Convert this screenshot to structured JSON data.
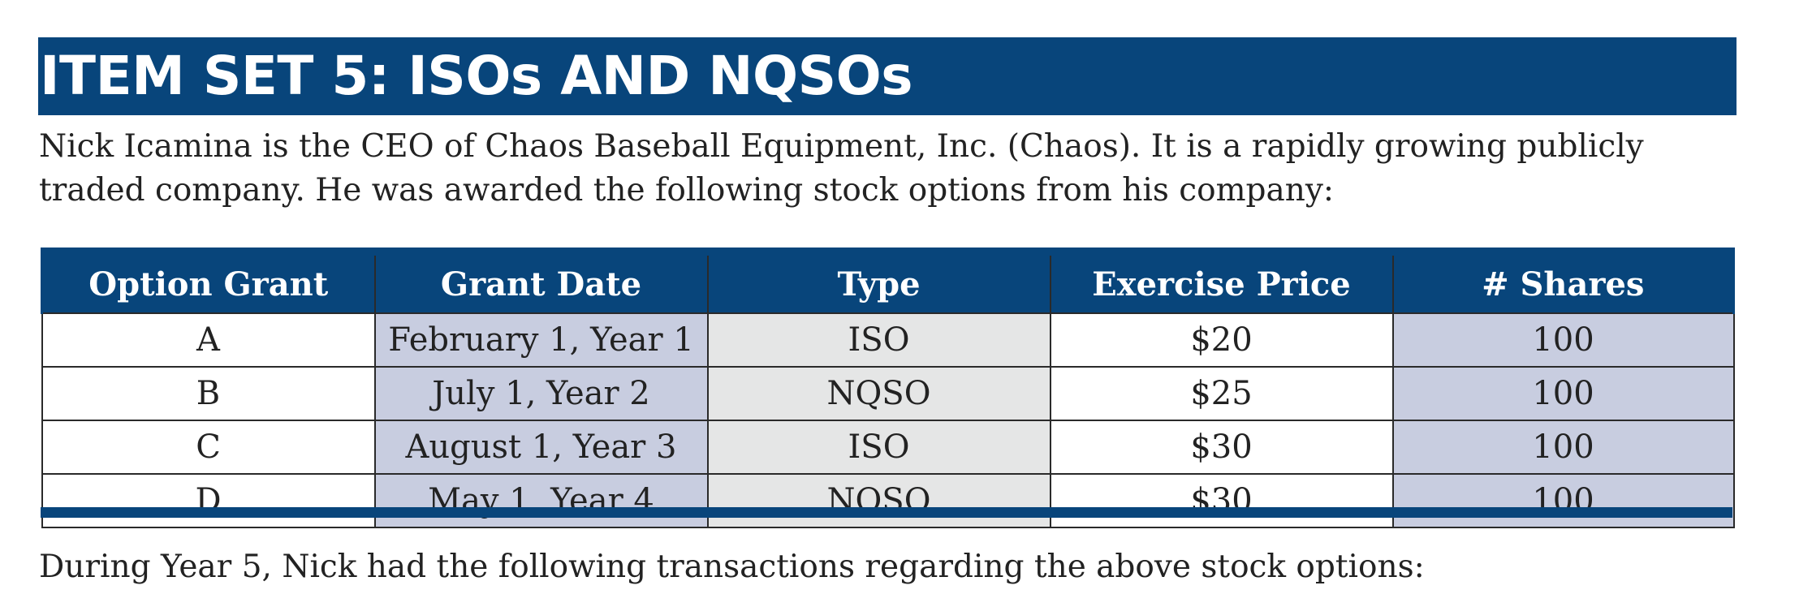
{
  "banner": {
    "title": "ITEM SET 5: ISOs AND NQSOs"
  },
  "intro": {
    "text": "Nick Icamina is the CEO of Chaos Baseball Equipment, Inc. (Chaos). It is a rapidly growing publicly traded company. He was awarded the following stock options from his company:"
  },
  "table": {
    "headers": [
      "Option Grant",
      "Grant Date",
      "Type",
      "Exercise Price",
      "# Shares"
    ],
    "rows": [
      [
        "A",
        "February 1, Year 1",
        "ISO",
        "$20",
        "100"
      ],
      [
        "B",
        "July 1, Year 2",
        "NQSO",
        "$25",
        "100"
      ],
      [
        "C",
        "August 1, Year 3",
        "ISO",
        "$30",
        "100"
      ],
      [
        "D",
        "May 1, Year 4",
        "NQSO",
        "$30",
        "100"
      ]
    ]
  },
  "outro": {
    "text": "During Year 5, Nick had the following transactions regarding the above stock options:"
  },
  "colors": {
    "banner_bg": "#08457b",
    "header_bg": "#08457b",
    "shaded_column": "#c8cde0",
    "gray_column": "#e5e6e6"
  }
}
